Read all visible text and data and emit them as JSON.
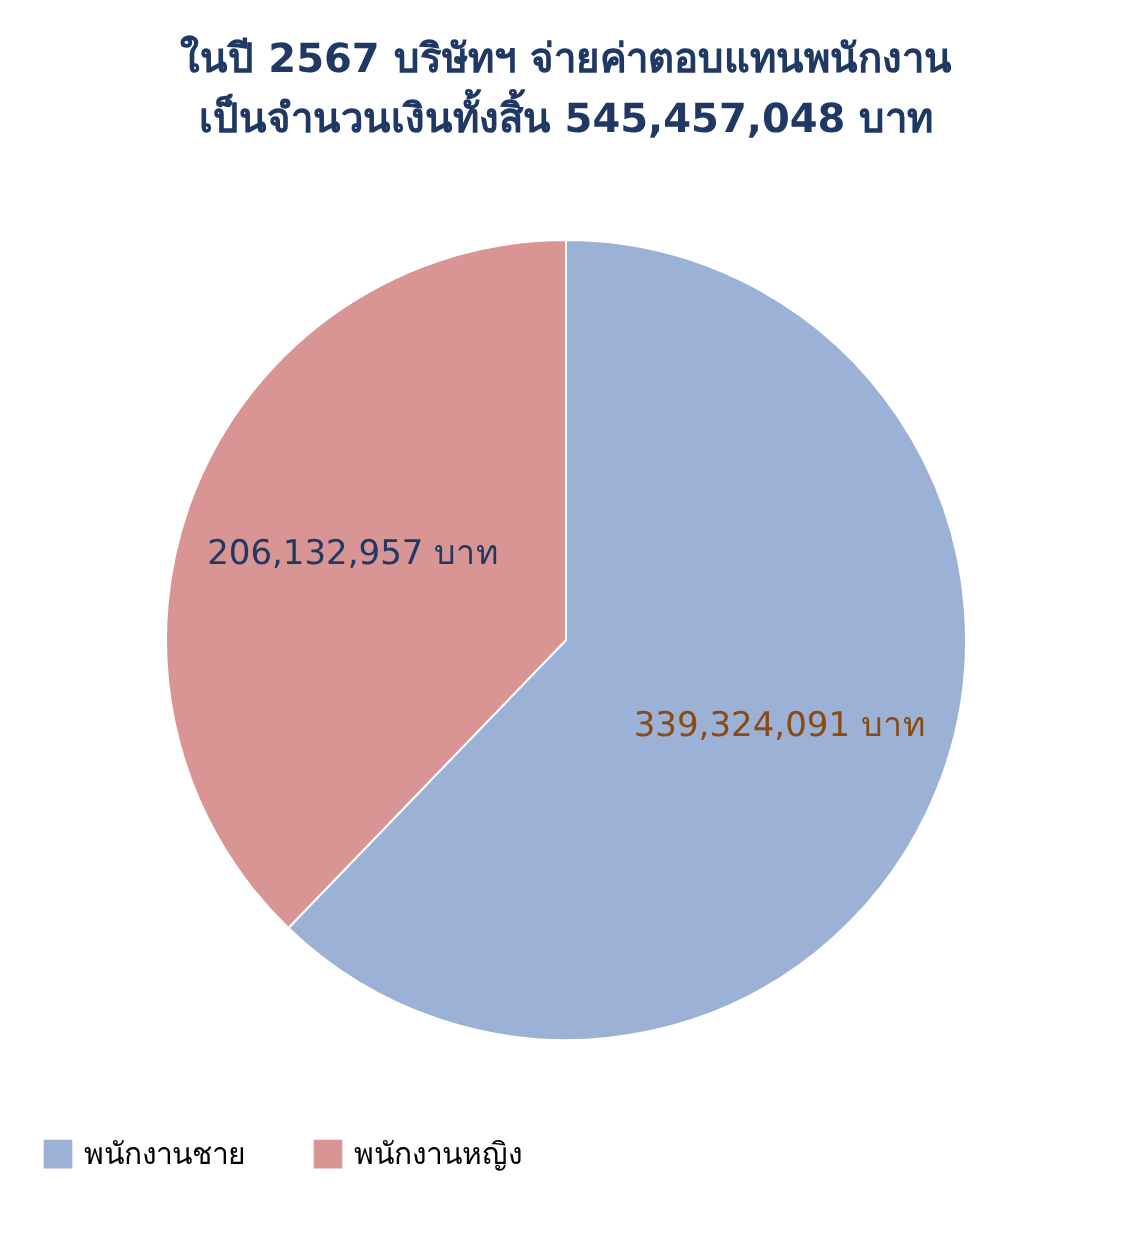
{
  "chart_data": {
    "type": "pie",
    "title": "ในปี 2567 บริษัทฯ จ่ายค่าตอบแทนพนักงาน\nเป็นจำนวนเงินทั้งสิ้น 545,457,048 บาท",
    "categories": [
      "พนักงานชาย",
      "พนักงานหญิง"
    ],
    "values": [
      339324091,
      206132957
    ],
    "colors": [
      "#9bb1d6",
      "#d99594"
    ],
    "value_labels": [
      "339,324,091 บาท",
      "206,132,957 บาท"
    ],
    "legend": "bottom"
  }
}
